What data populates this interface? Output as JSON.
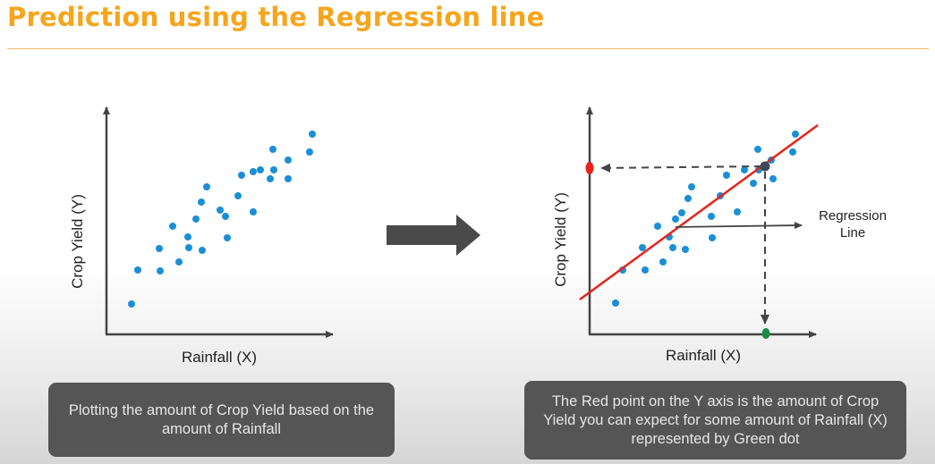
{
  "title": "Prediction using the Regression line",
  "left_chart": {
    "xlabel": "Rainfall (X)",
    "ylabel": "Crop Yield (Y)",
    "caption": "Plotting the amount of Crop Yield based on the amount of Rainfall"
  },
  "right_chart": {
    "xlabel": "Rainfall (X)",
    "ylabel": "Crop Yield (Y)",
    "regression_label_line1": "Regression",
    "regression_label_line2": "Line",
    "caption": "The Red point on the Y axis is the amount of Crop Yield you can expect for some amount of Rainfall (X) represented by Green dot"
  },
  "colors": {
    "title": "#f7a51c",
    "dot": "#1a8fd6",
    "regression_line": "#e8231c",
    "predicted_point": "#e8231c",
    "rainfall_point": "#1e8a47",
    "intersection_point": "#3a4a5a",
    "caption_bg": "#555555"
  },
  "arrow_icon": "right-arrow"
}
